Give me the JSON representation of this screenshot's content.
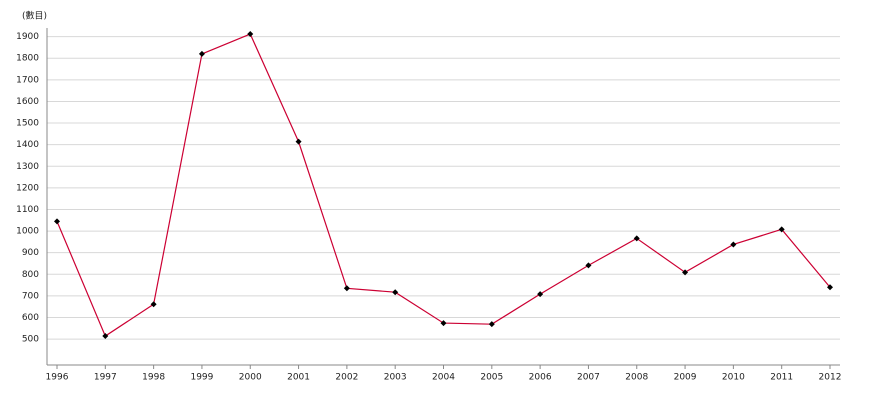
{
  "chart_data": {
    "type": "line",
    "y_label": "(數目)",
    "categories": [
      "1996",
      "1997",
      "1998",
      "1999",
      "2000",
      "2001",
      "2002",
      "2003",
      "2004",
      "2005",
      "2006",
      "2007",
      "2008",
      "2009",
      "2010",
      "2011",
      "2012"
    ],
    "series": [
      {
        "name": "數目",
        "color": "#cc0033",
        "marker_color": "#000000",
        "values": [
          1045,
          514,
          661,
          1820,
          1912,
          1414,
          735,
          717,
          574,
          569,
          708,
          841,
          966,
          809,
          938,
          1008,
          740
        ]
      }
    ],
    "ylim": [
      380,
      1940
    ],
    "yticks": [
      500,
      600,
      700,
      800,
      900,
      1000,
      1100,
      1200,
      1300,
      1400,
      1500,
      1600,
      1700,
      1800,
      1900
    ],
    "grid": true
  }
}
